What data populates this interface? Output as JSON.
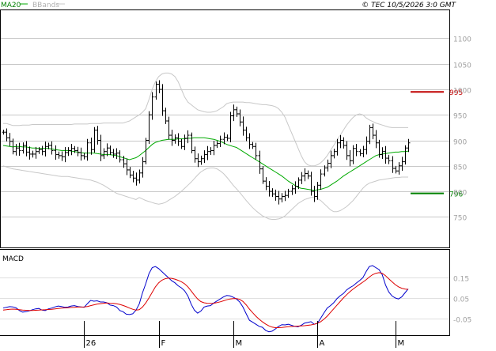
{
  "header": {
    "legend_ma": "MA20",
    "legend_bands": "BBands",
    "copyright": "© TEC 10/5/2026 3:0 GMT"
  },
  "colors": {
    "price": "#000000",
    "ma20": "#00aa00",
    "bbands": "#c8c8c8",
    "grid": "#c8c8c8",
    "resistance": "#c00000",
    "support": "#008000",
    "macd": "#0000cc",
    "signal": "#dd0000"
  },
  "chart_data": [
    {
      "type": "candlestick",
      "title": "",
      "xlabel": "",
      "ylabel": "",
      "ylim": [
        690,
        1155
      ],
      "yticks": [
        {
          "value": 1100,
          "label": "1100"
        },
        {
          "value": 1050,
          "label": "1050"
        },
        {
          "value": 1000,
          "label": "1000"
        },
        {
          "value": 950,
          "label": "950"
        },
        {
          "value": 900,
          "label": "900"
        },
        {
          "value": 850,
          "label": "850"
        },
        {
          "value": 800,
          "label": "800"
        },
        {
          "value": 750,
          "label": "750"
        }
      ],
      "levels": [
        {
          "name": "resistance",
          "value": 995,
          "label": "995"
        },
        {
          "name": "support",
          "value": 796,
          "label": "796"
        }
      ],
      "xticks": [
        {
          "index": 25,
          "label": "26"
        },
        {
          "index": 48,
          "label": "F"
        },
        {
          "index": 71,
          "label": "M"
        },
        {
          "index": 97,
          "label": "A"
        },
        {
          "index": 121,
          "label": "M"
        }
      ],
      "n": 126,
      "close": [
        916,
        905,
        898,
        878,
        885,
        880,
        890,
        877,
        873,
        873,
        878,
        882,
        878,
        888,
        890,
        880,
        872,
        870,
        868,
        876,
        880,
        884,
        880,
        876,
        870,
        868,
        895,
        882,
        920,
        900,
        870,
        878,
        885,
        876,
        873,
        875,
        862,
        854,
        842,
        832,
        826,
        822,
        836,
        858,
        900,
        950,
        985,
        1010,
        1000,
        958,
        938,
        910,
        900,
        905,
        898,
        888,
        904,
        910,
        880,
        864,
        858,
        864,
        872,
        878,
        880,
        890,
        894,
        902,
        906,
        904,
        948,
        960,
        952,
        936,
        920,
        905,
        892,
        888,
        870,
        844,
        820,
        810,
        800,
        795,
        790,
        785,
        790,
        792,
        800,
        805,
        810,
        822,
        830,
        835,
        830,
        800,
        790,
        812,
        834,
        846,
        855,
        870,
        878,
        895,
        900,
        890,
        870,
        860,
        884,
        878,
        874,
        882,
        898,
        925,
        910,
        895,
        872,
        878,
        865,
        860,
        845,
        840,
        850,
        858,
        885,
        895
      ],
      "ma20": [
        890,
        889,
        888,
        887,
        888,
        888,
        887,
        887,
        886,
        885,
        885,
        884,
        884,
        884,
        884,
        883,
        882,
        881,
        880,
        880,
        880,
        879,
        878,
        877,
        876,
        875,
        875,
        875,
        875,
        874,
        873,
        872,
        872,
        872,
        871,
        870,
        868,
        866,
        864,
        862,
        864,
        866,
        870,
        875,
        880,
        886,
        892,
        896,
        898,
        900,
        901,
        902,
        902,
        902,
        903,
        903,
        903,
        904,
        904,
        905,
        905,
        905,
        905,
        904,
        903,
        902,
        900,
        898,
        895,
        892,
        890,
        888,
        886,
        882,
        878,
        874,
        870,
        866,
        862,
        858,
        854,
        850,
        846,
        842,
        838,
        834,
        830,
        825,
        820,
        816,
        812,
        808,
        806,
        805,
        804,
        803,
        802,
        803,
        804,
        806,
        808,
        812,
        816,
        820,
        825,
        830,
        834,
        838,
        842,
        846,
        850,
        854,
        858,
        862,
        866,
        870,
        872,
        873,
        874,
        875,
        876,
        877,
        877,
        878,
        878,
        879
      ],
      "bb_upper": [
        933,
        933,
        931,
        929,
        929,
        929,
        930,
        930,
        930,
        931,
        931,
        931,
        931,
        931,
        931,
        931,
        931,
        931,
        931,
        931,
        931,
        931,
        932,
        932,
        932,
        932,
        932,
        933,
        933,
        933,
        933,
        934,
        934,
        934,
        934,
        934,
        934,
        934,
        936,
        938,
        942,
        946,
        950,
        955,
        962,
        980,
        1000,
        1015,
        1025,
        1030,
        1032,
        1032,
        1030,
        1025,
        1015,
        1000,
        985,
        975,
        970,
        965,
        960,
        958,
        956,
        955,
        955,
        956,
        958,
        962,
        966,
        972,
        974,
        975,
        975,
        975,
        975,
        974,
        974,
        973,
        972,
        971,
        970,
        970,
        969,
        968,
        966,
        962,
        955,
        945,
        930,
        915,
        900,
        885,
        870,
        858,
        852,
        850,
        850,
        852,
        856,
        862,
        870,
        880,
        890,
        900,
        910,
        920,
        930,
        938,
        945,
        950,
        952,
        950,
        944,
        940,
        937,
        934,
        932,
        930,
        928,
        926,
        925,
        925,
        925,
        925,
        925,
        925
      ],
      "bb_lower": [
        850,
        848,
        846,
        844,
        843,
        842,
        841,
        840,
        839,
        838,
        837,
        836,
        835,
        834,
        833,
        832,
        831,
        830,
        829,
        829,
        829,
        828,
        827,
        826,
        825,
        824,
        823,
        822,
        820,
        818,
        815,
        812,
        808,
        804,
        800,
        796,
        794,
        792,
        790,
        788,
        786,
        784,
        788,
        785,
        782,
        780,
        778,
        776,
        775,
        776,
        778,
        782,
        786,
        790,
        795,
        800,
        806,
        812,
        818,
        825,
        832,
        838,
        842,
        845,
        846,
        846,
        844,
        840,
        835,
        828,
        820,
        812,
        805,
        798,
        790,
        782,
        775,
        768,
        762,
        757,
        752,
        749,
        746,
        745,
        745,
        746,
        748,
        752,
        758,
        764,
        770,
        776,
        780,
        784,
        786,
        788,
        788,
        786,
        782,
        776,
        770,
        764,
        760,
        760,
        762,
        766,
        770,
        776,
        782,
        790,
        798,
        806,
        812,
        816,
        818,
        820,
        822,
        823,
        824,
        825,
        826,
        827,
        827,
        828,
        828,
        828
      ]
    },
    {
      "type": "line",
      "title": "MACD",
      "xlabel": "",
      "ylabel": "",
      "ylim": [
        -0.13,
        0.28
      ],
      "yticks": [
        {
          "value": 0.15,
          "label": "0.15"
        },
        {
          "value": 0.05,
          "label": "0.05"
        },
        {
          "value": -0.05,
          "label": "-0.05"
        }
      ],
      "series": [
        {
          "key": "macd",
          "values": [
            0.0,
            0.004,
            0.007,
            0.006,
            0.001,
            -0.012,
            -0.02,
            -0.018,
            -0.014,
            -0.008,
            -0.004,
            -0.002,
            -0.01,
            -0.012,
            -0.004,
            0.0,
            0.006,
            0.01,
            0.008,
            0.004,
            0.005,
            0.01,
            0.012,
            0.008,
            0.006,
            0.004,
            0.022,
            0.038,
            0.034,
            0.036,
            0.03,
            0.03,
            0.026,
            0.015,
            0.012,
            0.005,
            -0.012,
            -0.018,
            -0.03,
            -0.032,
            -0.028,
            -0.01,
            0.02,
            0.075,
            0.12,
            0.17,
            0.2,
            0.205,
            0.195,
            0.18,
            0.165,
            0.15,
            0.135,
            0.125,
            0.11,
            0.1,
            0.085,
            0.06,
            0.02,
            -0.01,
            -0.025,
            -0.015,
            0.005,
            0.01,
            0.012,
            0.025,
            0.035,
            0.045,
            0.055,
            0.062,
            0.06,
            0.054,
            0.045,
            0.03,
            0.005,
            -0.028,
            -0.06,
            -0.07,
            -0.08,
            -0.09,
            -0.095,
            -0.11,
            -0.117,
            -0.114,
            -0.103,
            -0.09,
            -0.082,
            -0.083,
            -0.08,
            -0.085,
            -0.09,
            -0.092,
            -0.085,
            -0.074,
            -0.071,
            -0.067,
            -0.08,
            -0.075,
            -0.05,
            -0.024,
            0.0,
            0.012,
            0.026,
            0.046,
            0.061,
            0.072,
            0.09,
            0.101,
            0.11,
            0.124,
            0.136,
            0.15,
            0.18,
            0.205,
            0.21,
            0.2,
            0.19,
            0.165,
            0.115,
            0.08,
            0.06,
            0.05,
            0.045,
            0.055,
            0.075,
            0.095
          ]
        },
        {
          "key": "signal",
          "values": [
            -0.01,
            -0.008,
            -0.006,
            -0.005,
            -0.006,
            -0.008,
            -0.01,
            -0.011,
            -0.012,
            -0.012,
            -0.011,
            -0.01,
            -0.009,
            -0.008,
            -0.007,
            -0.006,
            -0.004,
            -0.002,
            0.0,
            0.001,
            0.002,
            0.003,
            0.004,
            0.005,
            0.005,
            0.006,
            0.008,
            0.012,
            0.016,
            0.02,
            0.022,
            0.024,
            0.025,
            0.024,
            0.023,
            0.021,
            0.018,
            0.013,
            0.007,
            0.0,
            -0.006,
            -0.01,
            -0.008,
            0.005,
            0.025,
            0.05,
            0.078,
            0.105,
            0.125,
            0.138,
            0.145,
            0.148,
            0.147,
            0.143,
            0.137,
            0.13,
            0.12,
            0.105,
            0.085,
            0.064,
            0.045,
            0.032,
            0.026,
            0.024,
            0.023,
            0.024,
            0.027,
            0.031,
            0.036,
            0.041,
            0.045,
            0.047,
            0.047,
            0.043,
            0.033,
            0.016,
            -0.005,
            -0.023,
            -0.04,
            -0.055,
            -0.068,
            -0.079,
            -0.088,
            -0.094,
            -0.097,
            -0.097,
            -0.096,
            -0.094,
            -0.092,
            -0.091,
            -0.09,
            -0.089,
            -0.088,
            -0.087,
            -0.085,
            -0.083,
            -0.08,
            -0.075,
            -0.067,
            -0.055,
            -0.04,
            -0.022,
            -0.004,
            0.014,
            0.032,
            0.05,
            0.066,
            0.081,
            0.094,
            0.106,
            0.117,
            0.128,
            0.14,
            0.153,
            0.165,
            0.172,
            0.175,
            0.172,
            0.16,
            0.145,
            0.13,
            0.116,
            0.105,
            0.098,
            0.094,
            0.092
          ]
        }
      ]
    }
  ]
}
